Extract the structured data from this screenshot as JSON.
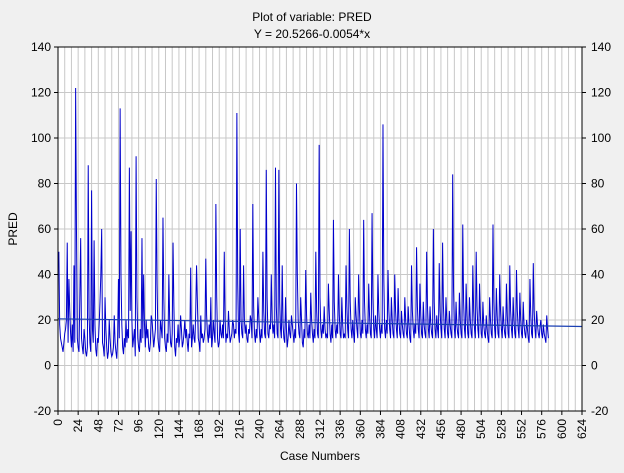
{
  "chart_data": {
    "type": "line",
    "title": "Plot of variable: PRED",
    "subtitle": "Y = 20.5266-0.0054*x",
    "xlabel": "Case Numbers",
    "ylabel": "PRED",
    "xlim": [
      0,
      624
    ],
    "ylim": [
      -20,
      140
    ],
    "xticks": [
      0,
      24,
      48,
      72,
      96,
      120,
      144,
      168,
      192,
      216,
      240,
      264,
      288,
      312,
      336,
      360,
      384,
      408,
      432,
      456,
      480,
      504,
      528,
      552,
      576,
      600,
      624
    ],
    "yticks": [
      -20,
      0,
      20,
      40,
      60,
      80,
      100,
      120,
      140
    ],
    "grid": true,
    "colors": {
      "series": "#0000cc",
      "fit": "#1a3fb3",
      "grid": "#c8c8c8",
      "plot_bg": "#ffffff"
    },
    "fit": {
      "intercept": 20.5266,
      "slope": -0.0054
    },
    "series": [
      {
        "x_start": 1,
        "values": [
          50,
          18,
          12,
          10,
          8,
          6,
          10,
          14,
          16,
          20,
          54,
          10,
          38,
          24,
          14,
          8,
          18,
          6,
          44,
          10,
          122,
          60,
          12,
          8,
          6,
          30,
          56,
          12,
          8,
          5,
          16,
          12,
          6,
          4,
          8,
          88,
          22,
          10,
          6,
          77,
          16,
          10,
          55,
          18,
          7,
          4,
          12,
          10,
          18,
          28,
          40,
          60,
          10,
          8,
          4,
          30,
          16,
          8,
          3,
          6,
          20,
          12,
          6,
          4,
          5,
          8,
          22,
          10,
          6,
          3,
          12,
          38,
          12,
          113,
          40,
          18,
          8,
          5,
          12,
          8,
          20,
          10,
          16,
          12,
          87,
          24,
          59,
          20,
          8,
          12,
          16,
          4,
          92,
          30,
          12,
          8,
          6,
          16,
          10,
          56,
          12,
          40,
          18,
          8,
          20,
          12,
          16,
          8,
          6,
          10,
          22,
          20,
          14,
          8,
          12,
          16,
          82,
          36,
          12,
          8,
          6,
          20,
          16,
          12,
          65,
          30,
          12,
          8,
          6,
          14,
          10,
          40,
          20,
          10,
          8,
          14,
          54,
          26,
          8,
          4,
          12,
          10,
          18,
          8,
          12,
          22,
          16,
          8,
          10,
          14,
          20,
          12,
          16,
          10,
          6,
          14,
          12,
          43,
          8,
          12,
          18,
          12,
          10,
          24,
          44,
          28,
          12,
          10,
          6,
          22,
          12,
          14,
          10,
          12,
          16,
          47,
          22,
          14,
          10,
          18,
          12,
          30,
          8,
          12,
          20,
          14,
          10,
          71,
          30,
          12,
          8,
          10,
          20,
          14,
          12,
          18,
          12,
          50,
          20,
          10,
          14,
          12,
          24,
          16,
          10,
          12,
          14,
          20,
          18,
          12,
          16,
          14,
          111,
          36,
          14,
          10,
          60,
          20,
          14,
          12,
          44,
          20,
          14,
          18,
          12,
          10,
          16,
          14,
          22,
          20,
          12,
          71,
          26,
          14,
          10,
          16,
          12,
          30,
          22,
          14,
          10,
          16,
          12,
          50,
          24,
          14,
          12,
          86,
          30,
          14,
          12,
          18,
          16,
          40,
          20,
          14,
          18,
          12,
          87,
          26,
          14,
          12,
          86,
          28,
          16,
          12,
          44,
          18,
          12,
          10,
          30,
          16,
          8,
          12,
          20,
          14,
          12,
          22,
          18,
          14,
          10,
          16,
          12,
          80,
          40,
          20,
          14,
          12,
          30,
          20,
          10,
          8,
          16,
          12,
          42,
          22,
          14,
          12,
          18,
          12,
          32,
          20,
          14,
          10,
          16,
          12,
          50,
          24,
          14,
          12,
          97,
          30,
          16,
          12,
          18,
          14,
          26,
          16,
          12,
          14,
          12,
          36,
          24,
          14,
          10,
          18,
          12,
          64,
          28,
          16,
          12,
          18,
          14,
          40,
          22,
          14,
          12,
          30,
          18,
          12,
          14,
          12,
          44,
          26,
          16,
          12,
          60,
          28,
          16,
          12,
          20,
          14,
          10,
          30,
          22,
          16,
          12,
          40,
          24,
          14,
          12,
          20,
          14,
          64,
          28,
          16,
          12,
          18,
          14,
          36,
          22,
          14,
          12,
          67,
          30,
          16,
          12,
          22,
          16,
          12,
          40,
          24,
          16,
          12,
          18,
          14,
          106,
          38,
          16,
          12,
          20,
          14,
          42,
          24,
          16,
          12,
          30,
          20,
          14,
          12,
          40,
          24,
          16,
          12,
          34,
          20,
          14,
          12,
          24,
          18,
          14,
          12,
          30,
          20,
          14,
          12,
          26,
          18,
          12,
          10,
          44,
          24,
          16,
          12,
          18,
          14,
          52,
          26,
          16,
          12,
          36,
          22,
          14,
          12,
          28,
          18,
          14,
          12,
          50,
          26,
          16,
          12,
          26,
          18,
          14,
          12,
          60,
          28,
          16,
          12,
          22,
          16,
          12,
          45,
          24,
          16,
          12,
          54,
          26,
          16,
          12,
          30,
          20,
          14,
          12,
          24,
          18,
          14,
          12,
          84,
          34,
          16,
          12,
          28,
          18,
          14,
          12,
          32,
          20,
          14,
          12,
          62,
          28,
          16,
          12,
          36,
          22,
          14,
          12,
          30,
          20,
          14,
          12,
          44,
          24,
          16,
          12,
          50,
          26,
          16,
          12,
          36,
          22,
          14,
          12,
          28,
          18,
          14,
          12,
          22,
          16,
          12,
          10,
          30,
          20,
          14,
          12,
          62,
          28,
          16,
          12,
          34,
          22,
          14,
          12,
          40,
          24,
          16,
          12,
          26,
          18,
          14,
          12,
          36,
          22,
          14,
          12,
          44,
          24,
          16,
          12,
          30,
          20,
          14,
          12,
          42,
          24,
          16,
          12,
          32,
          20,
          14,
          12,
          28,
          18,
          14,
          12,
          20,
          16,
          12,
          10,
          38,
          22,
          14,
          12,
          45,
          24,
          16,
          12,
          24,
          18,
          14,
          12,
          17,
          20,
          14,
          12,
          18,
          14,
          12,
          10,
          22,
          16,
          12
        ]
      }
    ]
  }
}
